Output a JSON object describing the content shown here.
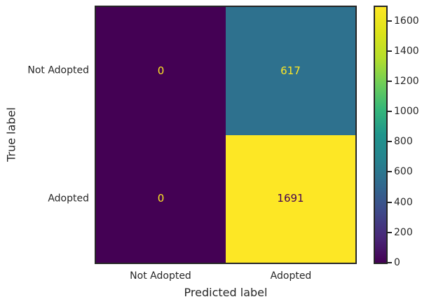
{
  "chart_data": {
    "type": "heatmap",
    "subtype": "confusion-matrix",
    "xlabel": "Predicted label",
    "ylabel": "True label",
    "x_tick_labels": [
      "Not Adopted",
      "Adopted"
    ],
    "y_tick_labels": [
      "Not Adopted",
      "Adopted"
    ],
    "matrix": [
      [
        0,
        617
      ],
      [
        0,
        1691
      ]
    ],
    "cells": [
      {
        "row": 0,
        "col": 0,
        "label": "0",
        "bg": "#440154",
        "fg": "#fde725"
      },
      {
        "row": 0,
        "col": 1,
        "label": "617",
        "bg": "#2e718e",
        "fg": "#fde725"
      },
      {
        "row": 1,
        "col": 0,
        "label": "0",
        "bg": "#440154",
        "fg": "#fde725"
      },
      {
        "row": 1,
        "col": 1,
        "label": "1691",
        "bg": "#fde725",
        "fg": "#440154"
      }
    ],
    "colormap": "viridis",
    "vmin": 0,
    "vmax": 1691,
    "colorbar": {
      "position": "right",
      "tick_values": [
        0,
        200,
        400,
        600,
        800,
        1000,
        1200,
        1400,
        1600
      ],
      "gradient_stops_bottom_to_top": [
        "#440154",
        "#482878",
        "#3e4989",
        "#31688e",
        "#26828e",
        "#1f948c",
        "#35b779",
        "#6ece58",
        "#b5de2b",
        "#dce319",
        "#fde725"
      ]
    },
    "colors": {
      "background": "#ffffff",
      "spine": "#262626",
      "text": "#262626"
    },
    "grid": false,
    "legend": false
  }
}
